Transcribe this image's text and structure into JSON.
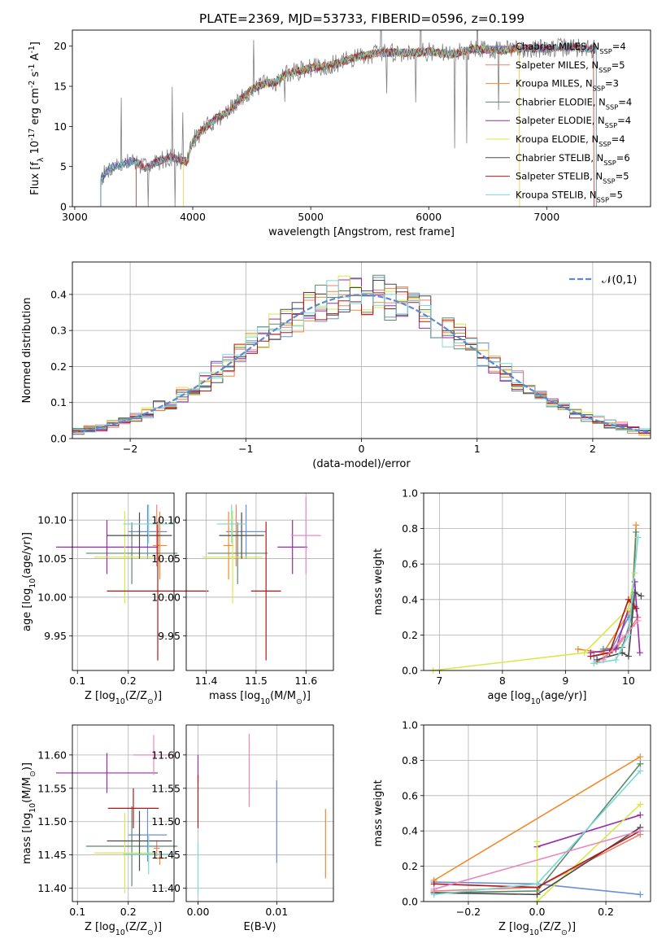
{
  "figure": {
    "title": "PLATE=2369, MJD=53733, FIBERID=0596, z=0.199"
  },
  "series_labels": [
    "Chabrier MILES, N$_{SSP}$=4",
    "Salpeter MILES, N$_{SSP}$=5",
    "Kroupa MILES, N$_{SSP}$=3",
    "Chabrier ELODIE, N$_{SSP}$=4",
    "Salpeter ELODIE, N$_{SSP}$=4",
    "Kroupa ELODIE, N$_{SSP}$=4",
    "Chabrier STELIB, N$_{SSP}$=6",
    "Salpeter STELIB, N$_{SSP}$=5",
    "Kroupa STELIB, N$_{SSP}$=5"
  ],
  "colors": [
    "#6a8fd8",
    "#f07f6a",
    "#f08a2a",
    "#5a8a6a",
    "#9a2aaa",
    "#d8e84a",
    "#4a4a4a",
    "#b01818",
    "#7ad8d8"
  ],
  "extra_color": "#e888c0",
  "chart_data": [
    {
      "id": "spectrum",
      "type": "line",
      "title": "PLATE=2369, MJD=53733, FIBERID=0596, z=0.199",
      "xlabel": "wavelength [Angstrom, rest frame]",
      "ylabel": "Flux [f$_\\lambda$ 10$^{-17}$ erg cm$^{-2}$ s$^{-1}$ A$^{-1}$]",
      "xlim": [
        2980,
        7880
      ],
      "ylim": [
        0,
        22
      ],
      "xticks": [
        3000,
        4000,
        5000,
        6000,
        7000
      ],
      "yticks": [
        0,
        5,
        10,
        15,
        20
      ],
      "legend_placement": "right",
      "wavelength_ranges": [
        [
          3220,
          7420
        ],
        [
          3520,
          7400
        ],
        [
          3920,
          6770
        ],
        [
          3220,
          7420
        ],
        [
          3220,
          7420
        ],
        [
          3920,
          6770
        ],
        [
          3220,
          7420
        ],
        [
          3520,
          7400
        ],
        [
          3220,
          7420
        ]
      ],
      "continuum": {
        "x": [
          3220,
          3300,
          3400,
          3500,
          3600,
          3700,
          3800,
          3900,
          3950,
          4000,
          4100,
          4200,
          4300,
          4400,
          4500,
          4600,
          4700,
          4800,
          4900,
          5000,
          5200,
          5400,
          5600,
          5800,
          6000,
          6200,
          6400,
          6600,
          6800,
          7000,
          7200,
          7420
        ],
        "y": [
          3.6,
          4.8,
          5.3,
          5.7,
          4.8,
          5.6,
          6.2,
          5.8,
          5.6,
          8.2,
          9.8,
          11.0,
          11.8,
          13.3,
          14.6,
          15.3,
          15.5,
          16.6,
          16.9,
          17.3,
          17.7,
          18.7,
          19.2,
          19.2,
          19.3,
          19.0,
          19.7,
          19.5,
          19.7,
          19.7,
          19.9,
          19.6
        ]
      }
    },
    {
      "id": "residuals",
      "type": "bar",
      "xlabel": "(data-model)/error",
      "ylabel": "Normed distribution",
      "xlim": [
        -2.5,
        2.5
      ],
      "ylim": [
        0,
        0.49
      ],
      "xticks": [
        -2,
        -1,
        0,
        1,
        2
      ],
      "yticks": [
        0.0,
        0.1,
        0.2,
        0.3,
        0.4
      ],
      "grid": true,
      "legend": "𝒩(0,1)",
      "legend_placement": "top-right",
      "bin_width": 0.1,
      "bins_from": -2.5,
      "bins_to": 2.5,
      "reference_curve": "normal(0,1) density"
    },
    {
      "id": "age_vs_Z",
      "type": "scatter",
      "xlabel": "Z [log$_{10}$(Z/Z$_\\odot$)]",
      "ylabel": "age  [log$_{10}$(age/yr)]",
      "xlim": [
        0.09,
        0.29
      ],
      "ylim": [
        9.905,
        10.135
      ],
      "xticks": [
        0.1,
        0.2
      ],
      "yticks": [
        9.95,
        10.0,
        10.05,
        10.1
      ],
      "grid": true,
      "points": [
        {
          "x": 0.238,
          "y": 10.085,
          "xerr": [
            0.038,
            0.038
          ],
          "yerr": [
            0.035,
            0.035
          ]
        },
        {
          "x": 0.256,
          "y": 10.08,
          "xerr": [
            0.006,
            0.006
          ],
          "yerr": [
            0.04,
            0.04
          ]
        },
        {
          "x": 0.262,
          "y": 10.067,
          "xerr": [
            0.014,
            0.014
          ],
          "yerr": [
            0.044,
            0.044
          ]
        },
        {
          "x": 0.207,
          "y": 10.057,
          "xerr": [
            0.09,
            0.09
          ],
          "yerr": [
            0.04,
            0.04
          ]
        },
        {
          "x": 0.158,
          "y": 10.065,
          "xerr": [
            0.1,
            0.1
          ],
          "yerr": [
            0.035,
            0.035
          ]
        },
        {
          "x": 0.193,
          "y": 10.052,
          "xerr": [
            0.06,
            0.06
          ],
          "yerr": [
            0.06,
            0.06
          ]
        },
        {
          "x": 0.222,
          "y": 10.08,
          "xerr": [
            0.064,
            0.064
          ],
          "yerr": [
            0.03,
            0.03
          ]
        },
        {
          "x": 0.258,
          "y": 10.008,
          "xerr": [
            0.1,
            0.1
          ],
          "yerr": [
            0.09,
            0.09
          ]
        },
        {
          "x": 0.24,
          "y": 10.095,
          "xerr": [
            0.05,
            0.05
          ],
          "yerr": [
            0.025,
            0.025
          ]
        }
      ]
    },
    {
      "id": "age_vs_mass",
      "type": "scatter",
      "xlabel": "mass [log$_{10}$(M/M$_\\odot$)]",
      "ylabel": "",
      "xlim": [
        11.36,
        11.655
      ],
      "ylim": [
        9.905,
        10.135
      ],
      "xticks": [
        11.4,
        11.5,
        11.6
      ],
      "yticks": [
        9.95,
        10.0,
        10.05,
        10.1
      ],
      "grid": true,
      "points": [
        {
          "x": 11.48,
          "y": 10.085,
          "xerr": [
            0.04,
            0.04
          ],
          "yerr": [
            0.035,
            0.035
          ]
        },
        {
          "x": 11.46,
          "y": 10.08,
          "xerr": [
            0.012,
            0.012
          ],
          "yerr": [
            0.04,
            0.04
          ]
        },
        {
          "x": 11.445,
          "y": 10.067,
          "xerr": [
            0.01,
            0.01
          ],
          "yerr": [
            0.044,
            0.044
          ]
        },
        {
          "x": 11.463,
          "y": 10.057,
          "xerr": [
            0.06,
            0.06
          ],
          "yerr": [
            0.04,
            0.04
          ]
        },
        {
          "x": 11.573,
          "y": 10.065,
          "xerr": [
            0.03,
            0.03
          ],
          "yerr": [
            0.035,
            0.035
          ]
        },
        {
          "x": 11.453,
          "y": 10.052,
          "xerr": [
            0.06,
            0.06
          ],
          "yerr": [
            0.06,
            0.06
          ]
        },
        {
          "x": 11.471,
          "y": 10.08,
          "xerr": [
            0.045,
            0.045
          ],
          "yerr": [
            0.03,
            0.03
          ]
        },
        {
          "x": 11.52,
          "y": 10.008,
          "xerr": [
            0.03,
            0.03
          ],
          "yerr": [
            0.09,
            0.09
          ]
        },
        {
          "x": 11.451,
          "y": 10.095,
          "xerr": [
            0.03,
            0.03
          ],
          "yerr": [
            0.025,
            0.025
          ]
        },
        {
          "x": 11.6,
          "y": 10.08,
          "xerr": [
            0.03,
            0.03
          ],
          "yerr": [
            0.05,
            0.05
          ],
          "extra": true
        }
      ]
    },
    {
      "id": "weight_vs_age",
      "type": "line",
      "xlabel": "age  [log$_{10}$(age/yr)]",
      "ylabel": "mass weight",
      "xlim": [
        6.75,
        10.35
      ],
      "ylim": [
        0,
        1
      ],
      "xticks": [
        7,
        8,
        9,
        10
      ],
      "yticks": [
        0.0,
        0.2,
        0.4,
        0.6,
        0.8,
        1.0
      ],
      "grid": true,
      "series": [
        {
          "x": [
            9.45,
            9.7,
            10.0,
            10.1
          ],
          "y": [
            0.08,
            0.1,
            0.3,
            0.36
          ]
        },
        {
          "x": [
            9.5,
            9.8,
            10.05,
            10.15
          ],
          "y": [
            0.05,
            0.12,
            0.25,
            0.3
          ]
        },
        {
          "x": [
            9.2,
            9.6,
            10.05,
            10.12
          ],
          "y": [
            0.12,
            0.1,
            0.35,
            0.82
          ]
        },
        {
          "x": [
            9.6,
            9.9,
            10.05,
            10.12
          ],
          "y": [
            0.12,
            0.13,
            0.3,
            0.78
          ]
        },
        {
          "x": [
            9.4,
            9.8,
            10.0,
            10.1,
            10.18
          ],
          "y": [
            0.1,
            0.12,
            0.35,
            0.5,
            0.1
          ]
        },
        {
          "x": [
            6.9,
            9.3,
            10.0,
            10.1
          ],
          "y": [
            0.0,
            0.1,
            0.35,
            0.55
          ]
        },
        {
          "x": [
            9.5,
            9.9,
            10.0,
            10.1,
            10.2
          ],
          "y": [
            0.06,
            0.1,
            0.08,
            0.44,
            0.42
          ]
        },
        {
          "x": [
            9.4,
            9.7,
            10.0,
            10.12
          ],
          "y": [
            0.08,
            0.1,
            0.4,
            0.35
          ]
        },
        {
          "x": [
            9.45,
            9.8,
            10.0,
            10.15
          ],
          "y": [
            0.04,
            0.06,
            0.2,
            0.75
          ]
        },
        {
          "x": [
            9.6,
            9.9,
            10.15
          ],
          "y": [
            0.06,
            0.18,
            0.28
          ],
          "extra": true
        }
      ]
    },
    {
      "id": "mass_vs_Z",
      "type": "scatter",
      "xlabel": "Z [log$_{10}$(Z/Z$_\\odot$)]",
      "ylabel": "mass [log$_{10}$(M/M$_\\odot$)]",
      "xlim": [
        0.09,
        0.29
      ],
      "ylim": [
        11.38,
        11.645
      ],
      "xticks": [
        0.1,
        0.2
      ],
      "yticks": [
        11.4,
        11.45,
        11.5,
        11.55,
        11.6
      ],
      "grid": true,
      "points": [
        {
          "x": 0.238,
          "y": 11.48,
          "xerr": [
            0.038,
            0.038
          ],
          "yerr": [
            0.04,
            0.04
          ]
        },
        {
          "x": 0.256,
          "y": 11.46,
          "xerr": [
            0.006,
            0.006
          ],
          "yerr": [
            0.012,
            0.012
          ]
        },
        {
          "x": 0.262,
          "y": 11.445,
          "xerr": [
            0.014,
            0.014
          ],
          "yerr": [
            0.01,
            0.01
          ]
        },
        {
          "x": 0.207,
          "y": 11.463,
          "xerr": [
            0.09,
            0.09
          ],
          "yerr": [
            0.06,
            0.06
          ]
        },
        {
          "x": 0.158,
          "y": 11.573,
          "xerr": [
            0.1,
            0.1
          ],
          "yerr": [
            0.03,
            0.03
          ]
        },
        {
          "x": 0.193,
          "y": 11.453,
          "xerr": [
            0.06,
            0.06
          ],
          "yerr": [
            0.06,
            0.06
          ]
        },
        {
          "x": 0.222,
          "y": 11.471,
          "xerr": [
            0.064,
            0.064
          ],
          "yerr": [
            0.045,
            0.045
          ]
        },
        {
          "x": 0.21,
          "y": 11.52,
          "xerr": [
            0.05,
            0.05
          ],
          "yerr": [
            0.03,
            0.03
          ]
        },
        {
          "x": 0.24,
          "y": 11.451,
          "xerr": [
            0.05,
            0.05
          ],
          "yerr": [
            0.03,
            0.03
          ]
        },
        {
          "x": 0.25,
          "y": 11.6,
          "xerr": [
            0.04,
            0.04
          ],
          "yerr": [
            0.03,
            0.03
          ],
          "extra": true
        }
      ]
    },
    {
      "id": "mass_vs_ebv",
      "type": "scatter",
      "xlabel": "E(B-V)",
      "ylabel": "",
      "xlim": [
        -0.0015,
        0.0172
      ],
      "ylim": [
        11.38,
        11.645
      ],
      "xticks": [
        0.0,
        0.01
      ],
      "xticklabels": [
        "0.00",
        "0.01"
      ],
      "yticks": [
        11.4,
        11.45,
        11.5,
        11.55,
        11.6
      ],
      "grid": true,
      "points": [
        {
          "x": 0.01,
          "y": 11.5,
          "yerr": [
            0.062,
            0.062
          ]
        },
        {
          "x": 0.0162,
          "y": 11.467,
          "yerr": [
            0.052,
            0.052
          ],
          "color_index": 2
        },
        {
          "x": 0.0,
          "y": 11.58,
          "yerr": [
            0.02,
            0.02
          ],
          "color_index": 4
        },
        {
          "x": 0.0,
          "y": 11.53,
          "yerr": [
            0.04,
            0.04
          ],
          "color_index": 7
        },
        {
          "x": 0.0,
          "y": 11.43,
          "yerr": [
            0.04,
            0.04
          ],
          "color_index": 8
        },
        {
          "x": 0.0065,
          "y": 11.577,
          "yerr": [
            0.055,
            0.055
          ],
          "extra": true
        }
      ]
    },
    {
      "id": "weight_vs_Z",
      "type": "line",
      "xlabel": "Z [log$_{10}$(Z/Z$_\\odot$)]",
      "ylabel": "mass weight",
      "xlim": [
        -0.33,
        0.33
      ],
      "ylim": [
        0,
        1
      ],
      "xticks": [
        -0.2,
        0.0,
        0.2
      ],
      "xticklabels": [
        "−0.2",
        "0.0",
        "0.2"
      ],
      "yticks": [
        0.0,
        0.2,
        0.4,
        0.6,
        0.8,
        1.0
      ],
      "grid": true,
      "series": [
        {
          "x": [
            -0.3,
            0.0,
            0.3
          ],
          "y": [
            0.11,
            0.1,
            0.04
          ]
        },
        {
          "x": [
            -0.3,
            0.0,
            0.3
          ],
          "y": [
            0.06,
            0.08,
            0.38
          ]
        },
        {
          "x": [
            -0.3,
            0.3
          ],
          "y": [
            0.12,
            0.82
          ]
        },
        {
          "x": [
            -0.3,
            0.0,
            0.3
          ],
          "y": [
            0.05,
            0.06,
            0.78
          ]
        },
        {
          "x": [
            0.0,
            0.3
          ],
          "y": [
            0.31,
            0.49
          ]
        },
        {
          "x": [
            0.0,
            0.0,
            0.3
          ],
          "y": [
            0.34,
            0.0,
            0.55
          ]
        },
        {
          "x": [
            -0.3,
            0.0,
            0.3
          ],
          "y": [
            0.05,
            0.04,
            0.42
          ]
        },
        {
          "x": [
            -0.3,
            0.0,
            0.3
          ],
          "y": [
            0.1,
            0.08,
            0.4
          ]
        },
        {
          "x": [
            -0.3,
            0.0,
            0.3
          ],
          "y": [
            0.04,
            0.1,
            0.74
          ]
        },
        {
          "x": [
            -0.3,
            0.3
          ],
          "y": [
            0.07,
            0.4
          ],
          "extra": true
        }
      ]
    }
  ]
}
